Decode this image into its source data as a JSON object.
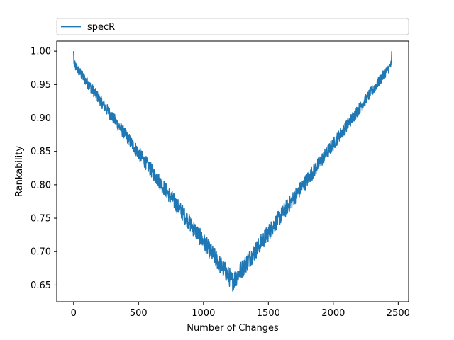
{
  "chart_data": {
    "type": "line",
    "title": "",
    "xlabel": "Number of Changes",
    "ylabel": "Rankability",
    "xlim": [
      -130,
      2580
    ],
    "ylim": [
      0.625,
      1.015
    ],
    "xticks": [
      0,
      500,
      1000,
      1500,
      2000,
      2500
    ],
    "xtick_labels": [
      "0",
      "500",
      "1000",
      "1500",
      "2000",
      "2500"
    ],
    "yticks": [
      0.65,
      0.7,
      0.75,
      0.8,
      0.85,
      0.9,
      0.95,
      1.0
    ],
    "ytick_labels": [
      "0.65",
      "0.70",
      "0.75",
      "0.80",
      "0.85",
      "0.90",
      "0.95",
      "1.00"
    ],
    "grid": false,
    "legend_position": "top (above plot)",
    "series": [
      {
        "name": "specR",
        "color": "#1f77b4",
        "x_range": [
          0,
          2450
        ],
        "trend_points": [
          {
            "x": 0,
            "y": 1.0
          },
          {
            "x": 3,
            "y": 0.98
          },
          {
            "x": 1225,
            "y": 0.655
          },
          {
            "x": 2447,
            "y": 0.98
          },
          {
            "x": 2450,
            "y": 1.0
          }
        ],
        "noise_amplitude": 0.012
      }
    ]
  }
}
